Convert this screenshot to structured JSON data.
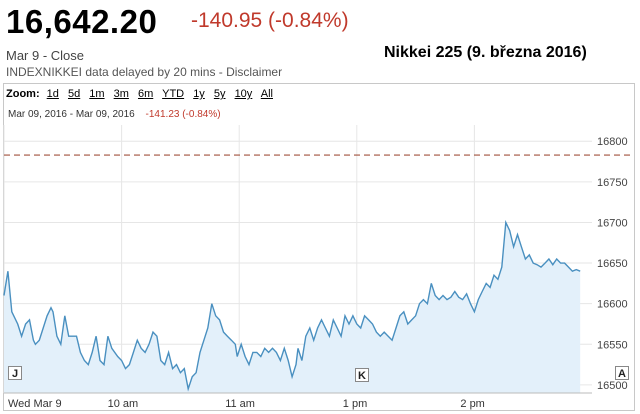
{
  "header": {
    "price": "16,642.20",
    "change": "-140.95 (-0.84%)",
    "status": "Mar 9 - Close",
    "source": "INDEXNIKKEI data delayed by 20 mins - Disclaimer",
    "caption": "Nikkei 225 (9. března 2016)"
  },
  "zoom": {
    "label": "Zoom:",
    "options": [
      "1d",
      "5d",
      "1m",
      "3m",
      "6m",
      "YTD",
      "1y",
      "5y",
      "10y",
      "All"
    ]
  },
  "range": {
    "text": "Mar 09, 2016  -  Mar 09, 2016",
    "change": "-141.23 (-0.84%)"
  },
  "markers": {
    "left": "J",
    "middle": "K",
    "right": "A"
  },
  "colors": {
    "line": "#4a90c0",
    "fill": "#e3f0fa",
    "ref_line": "#a0523c",
    "negative": "#c0392b"
  },
  "chart_data": {
    "type": "area",
    "title": "",
    "xlabel": "",
    "ylabel": "",
    "ylim": [
      16490,
      16820
    ],
    "reference_line": 16783,
    "yticks": [
      16500,
      16550,
      16600,
      16650,
      16700,
      16750,
      16800
    ],
    "xticks": [
      {
        "t": 0,
        "label": "Wed Mar 9"
      },
      {
        "t": 60,
        "label": "10 am"
      },
      {
        "t": 120,
        "label": "11 am"
      },
      {
        "t": 180,
        "label": "1 pm"
      },
      {
        "t": 240,
        "label": "2 pm"
      }
    ],
    "x_max": 300,
    "series": [
      {
        "points": [
          [
            0,
            16610
          ],
          [
            2,
            16640
          ],
          [
            4,
            16590
          ],
          [
            7,
            16575
          ],
          [
            9,
            16560
          ],
          [
            11,
            16575
          ],
          [
            13,
            16580
          ],
          [
            15,
            16555
          ],
          [
            16,
            16550
          ],
          [
            18,
            16555
          ],
          [
            20,
            16570
          ],
          [
            22,
            16585
          ],
          [
            24,
            16595
          ],
          [
            25,
            16590
          ],
          [
            27,
            16560
          ],
          [
            29,
            16550
          ],
          [
            31,
            16585
          ],
          [
            33,
            16560
          ],
          [
            35,
            16560
          ],
          [
            37,
            16560
          ],
          [
            39,
            16540
          ],
          [
            41,
            16530
          ],
          [
            43,
            16525
          ],
          [
            45,
            16540
          ],
          [
            47,
            16560
          ],
          [
            49,
            16530
          ],
          [
            51,
            16525
          ],
          [
            53,
            16560
          ],
          [
            55,
            16545
          ],
          [
            58,
            16535
          ],
          [
            60,
            16530
          ],
          [
            62,
            16520
          ],
          [
            64,
            16525
          ],
          [
            66,
            16540
          ],
          [
            68,
            16555
          ],
          [
            70,
            16545
          ],
          [
            72,
            16540
          ],
          [
            74,
            16550
          ],
          [
            76,
            16565
          ],
          [
            78,
            16560
          ],
          [
            80,
            16530
          ],
          [
            82,
            16525
          ],
          [
            84,
            16540
          ],
          [
            86,
            16520
          ],
          [
            88,
            16525
          ],
          [
            90,
            16515
          ],
          [
            92,
            16520
          ],
          [
            94,
            16495
          ],
          [
            96,
            16510
          ],
          [
            98,
            16515
          ],
          [
            100,
            16540
          ],
          [
            102,
            16555
          ],
          [
            104,
            16570
          ],
          [
            106,
            16600
          ],
          [
            108,
            16585
          ],
          [
            110,
            16580
          ],
          [
            112,
            16565
          ],
          [
            114,
            16560
          ],
          [
            116,
            16555
          ],
          [
            118,
            16550
          ],
          [
            119,
            16535
          ],
          [
            121,
            16550
          ],
          [
            123,
            16535
          ],
          [
            125,
            16525
          ],
          [
            127,
            16540
          ],
          [
            129,
            16540
          ],
          [
            131,
            16535
          ],
          [
            133,
            16545
          ],
          [
            135,
            16540
          ],
          [
            137,
            16545
          ],
          [
            139,
            16540
          ],
          [
            141,
            16530
          ],
          [
            143,
            16545
          ],
          [
            145,
            16530
          ],
          [
            147,
            16510
          ],
          [
            149,
            16525
          ],
          [
            150,
            16545
          ],
          [
            152,
            16530
          ],
          [
            154,
            16560
          ],
          [
            156,
            16570
          ],
          [
            158,
            16555
          ],
          [
            160,
            16570
          ],
          [
            162,
            16580
          ],
          [
            164,
            16570
          ],
          [
            166,
            16560
          ],
          [
            168,
            16580
          ],
          [
            170,
            16570
          ],
          [
            172,
            16560
          ],
          [
            174,
            16585
          ],
          [
            176,
            16575
          ],
          [
            178,
            16585
          ],
          [
            180,
            16575
          ],
          [
            182,
            16570
          ],
          [
            184,
            16585
          ],
          [
            186,
            16580
          ],
          [
            188,
            16575
          ],
          [
            190,
            16565
          ],
          [
            192,
            16560
          ],
          [
            194,
            16565
          ],
          [
            196,
            16560
          ],
          [
            198,
            16555
          ],
          [
            200,
            16570
          ],
          [
            202,
            16585
          ],
          [
            204,
            16590
          ],
          [
            206,
            16575
          ],
          [
            208,
            16580
          ],
          [
            210,
            16585
          ],
          [
            212,
            16600
          ],
          [
            214,
            16605
          ],
          [
            216,
            16600
          ],
          [
            218,
            16625
          ],
          [
            220,
            16610
          ],
          [
            222,
            16605
          ],
          [
            224,
            16610
          ],
          [
            226,
            16605
          ],
          [
            228,
            16608
          ],
          [
            230,
            16615
          ],
          [
            232,
            16608
          ],
          [
            234,
            16605
          ],
          [
            236,
            16612
          ],
          [
            238,
            16600
          ],
          [
            240,
            16590
          ],
          [
            242,
            16605
          ],
          [
            244,
            16615
          ],
          [
            246,
            16625
          ],
          [
            248,
            16620
          ],
          [
            250,
            16635
          ],
          [
            252,
            16630
          ],
          [
            254,
            16645
          ],
          [
            256,
            16700
          ],
          [
            258,
            16690
          ],
          [
            260,
            16670
          ],
          [
            262,
            16685
          ],
          [
            264,
            16670
          ],
          [
            266,
            16655
          ],
          [
            268,
            16660
          ],
          [
            270,
            16650
          ],
          [
            272,
            16648
          ],
          [
            274,
            16645
          ],
          [
            276,
            16650
          ],
          [
            278,
            16655
          ],
          [
            280,
            16648
          ],
          [
            282,
            16655
          ],
          [
            284,
            16650
          ],
          [
            286,
            16650
          ],
          [
            288,
            16645
          ],
          [
            290,
            16640
          ],
          [
            292,
            16642
          ],
          [
            294,
            16640
          ]
        ]
      }
    ]
  }
}
